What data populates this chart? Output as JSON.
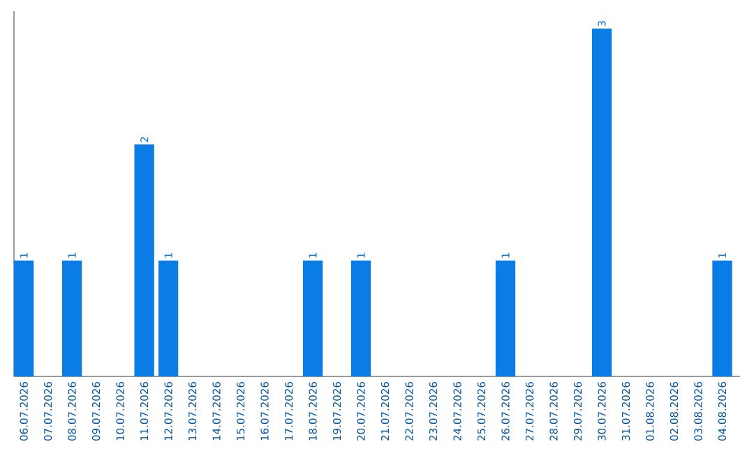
{
  "chart_data": {
    "type": "bar",
    "categories": [
      "06.07.2026",
      "07.07.2026",
      "08.07.2026",
      "09.07.2026",
      "10.07.2026",
      "11.07.2026",
      "12.07.2026",
      "13.07.2026",
      "14.07.2026",
      "15.07.2026",
      "16.07.2026",
      "17.07.2026",
      "18.07.2026",
      "19.07.2026",
      "20.07.2026",
      "21.07.2026",
      "22.07.2026",
      "23.07.2026",
      "24.07.2026",
      "25.07.2026",
      "26.07.2026",
      "27.07.2026",
      "28.07.2026",
      "29.07.2026",
      "30.07.2026",
      "31.07.2026",
      "01.08.2026",
      "02.08.2026",
      "03.08.2026",
      "04.08.2026"
    ],
    "values": [
      1,
      0,
      1,
      0,
      0,
      2,
      1,
      0,
      0,
      0,
      0,
      0,
      1,
      0,
      1,
      0,
      0,
      0,
      0,
      0,
      1,
      0,
      0,
      0,
      3,
      0,
      0,
      0,
      0,
      1
    ],
    "value_labels": [
      "1",
      null,
      "1",
      null,
      null,
      "2",
      "1",
      null,
      null,
      null,
      null,
      null,
      "1",
      null,
      "1",
      null,
      null,
      null,
      null,
      null,
      "1",
      null,
      null,
      null,
      "3",
      null,
      null,
      null,
      null,
      "1"
    ],
    "color": "#0a7ce6",
    "tick_labels": "x"
  }
}
